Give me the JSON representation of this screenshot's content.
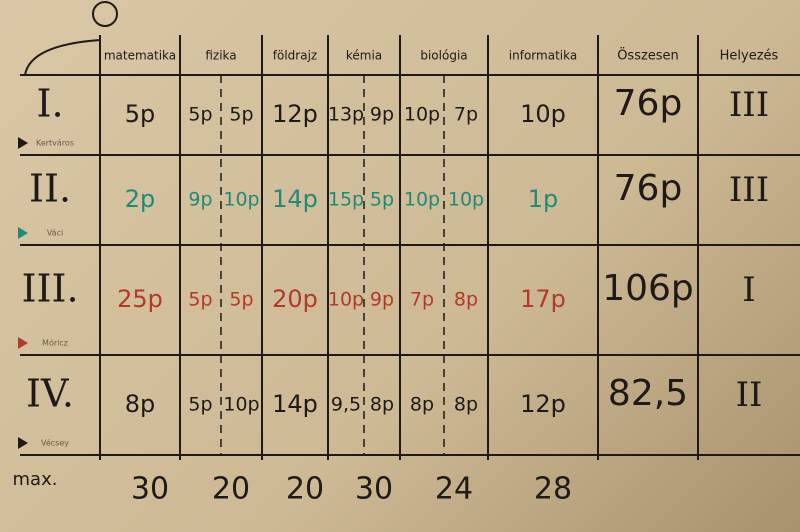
{
  "table": {
    "headers": [
      "matematika",
      "fizika",
      "földrajz",
      "kémia",
      "biológia",
      "informatika",
      "Összesen",
      "Helyezés"
    ],
    "rows": [
      {
        "label": "I.",
        "team": "Kertváros",
        "color": "#1e1a18",
        "scores": [
          [
            "5p"
          ],
          [
            "5p",
            "5p"
          ],
          [
            "12p"
          ],
          [
            "13p",
            "9p"
          ],
          [
            "10p",
            "7p"
          ],
          [
            "10p"
          ]
        ],
        "total": "76p",
        "place": "III"
      },
      {
        "label": "II.",
        "team": "Váci",
        "color": "#1f8a78",
        "scores": [
          [
            "2p"
          ],
          [
            "9p",
            "10p"
          ],
          [
            "14p"
          ],
          [
            "15p",
            "5p"
          ],
          [
            "10p",
            "10p"
          ],
          [
            "1p"
          ]
        ],
        "total": "76p",
        "place": "III"
      },
      {
        "label": "III.",
        "team": "Móricz",
        "color": "#b23a2a",
        "scores": [
          [
            "25p"
          ],
          [
            "5p",
            "5p"
          ],
          [
            "20p"
          ],
          [
            "10p",
            "9p"
          ],
          [
            "7p",
            "8p"
          ],
          [
            "17p"
          ]
        ],
        "total": "106p",
        "place": "I"
      },
      {
        "label": "IV.",
        "team": "Vécsey",
        "color": "#1e1a18",
        "scores": [
          [
            "8p"
          ],
          [
            "5p",
            "10p"
          ],
          [
            "14p"
          ],
          [
            "9,5",
            "8p"
          ],
          [
            "8p",
            "8p"
          ],
          [
            "12p"
          ]
        ],
        "total": "82,5",
        "place": "II"
      }
    ],
    "max_label": "max.",
    "max": [
      "30",
      "20",
      "20",
      "30",
      "24",
      "28"
    ]
  }
}
